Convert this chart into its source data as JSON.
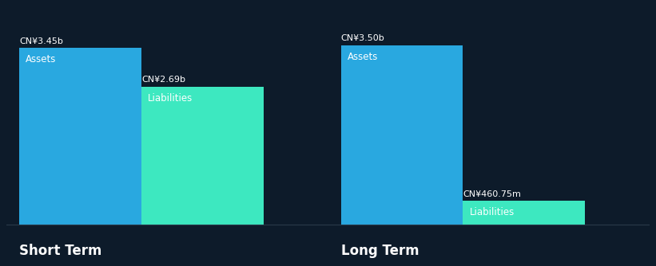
{
  "background_color": "#0d1b2a",
  "text_color": "#ffffff",
  "asset_color": "#29a8e0",
  "liability_color": "#3de8c0",
  "short_term": {
    "label": "Short Term",
    "assets_value": 3.45,
    "assets_label": "CN¥3.45b",
    "assets_text": "Assets",
    "liabilities_value": 2.69,
    "liabilities_label": "CN¥2.69b",
    "liabilities_text": "Liabilities"
  },
  "long_term": {
    "label": "Long Term",
    "assets_value": 3.5,
    "assets_label": "CN¥3.50b",
    "assets_text": "Assets",
    "liabilities_value": 0.46075,
    "liabilities_label": "CN¥460.75m",
    "liabilities_text": "Liabilities"
  },
  "max_value": 3.5,
  "value_label_fontsize": 8,
  "bar_label_fontsize": 8.5,
  "group_label_fontsize": 12,
  "label_font_weight": "bold"
}
